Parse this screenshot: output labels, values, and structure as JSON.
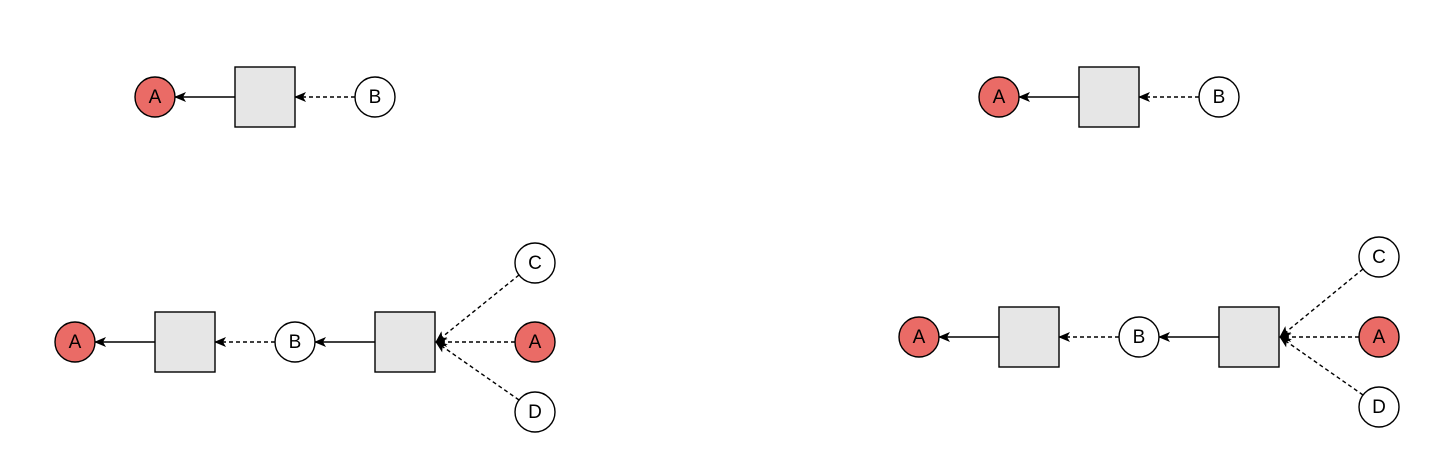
{
  "colors": {
    "background": "#ffffff",
    "stroke": "#000000",
    "highlight_fill": "#ea6b66",
    "box_fill": "#e6e6e6",
    "plain_fill": "#ffffff"
  },
  "diagrams": [
    {
      "id": "top-left",
      "nodes": [
        {
          "id": "a",
          "label": "A",
          "highlight": true
        },
        {
          "id": "b",
          "label": "B",
          "highlight": false
        }
      ]
    },
    {
      "id": "top-right",
      "nodes": [
        {
          "id": "a",
          "label": "A",
          "highlight": true
        },
        {
          "id": "b",
          "label": "B",
          "highlight": false
        }
      ]
    },
    {
      "id": "bottom-left",
      "nodes": [
        {
          "id": "a1",
          "label": "A",
          "highlight": true
        },
        {
          "id": "b",
          "label": "B",
          "highlight": false
        },
        {
          "id": "c",
          "label": "C",
          "highlight": false
        },
        {
          "id": "a2",
          "label": "A",
          "highlight": true
        },
        {
          "id": "d",
          "label": "D",
          "highlight": false
        }
      ]
    },
    {
      "id": "bottom-right",
      "nodes": [
        {
          "id": "a1",
          "label": "A",
          "highlight": true
        },
        {
          "id": "b",
          "label": "B",
          "highlight": false
        },
        {
          "id": "c",
          "label": "C",
          "highlight": false
        },
        {
          "id": "a2",
          "label": "A",
          "highlight": true
        },
        {
          "id": "d",
          "label": "D",
          "highlight": false
        }
      ]
    }
  ]
}
